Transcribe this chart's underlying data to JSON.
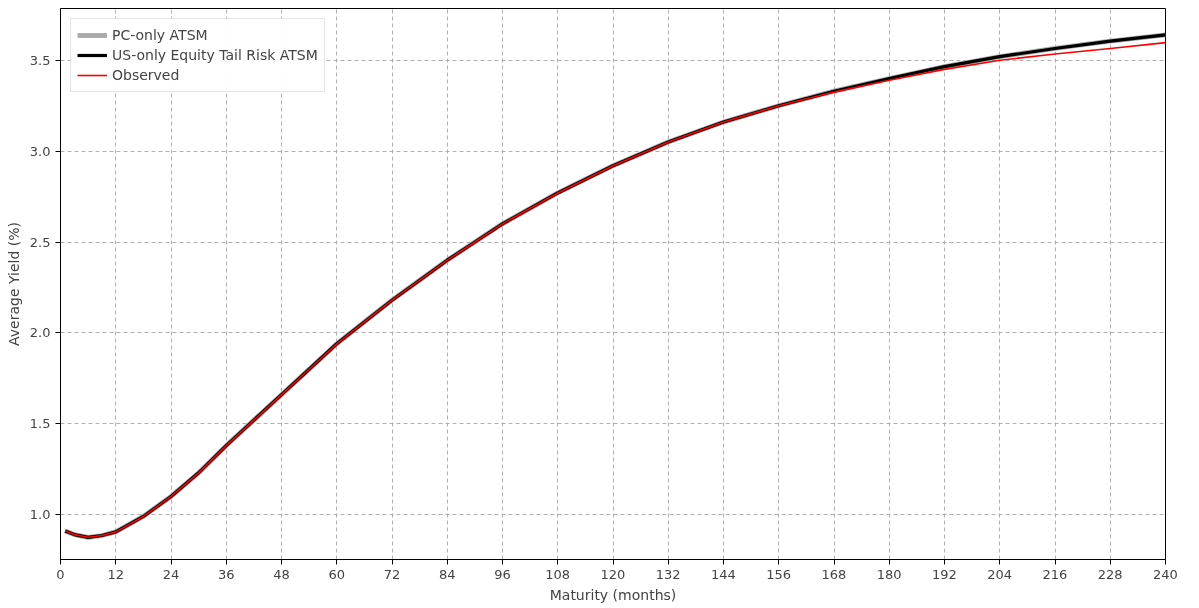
{
  "chart_data": {
    "type": "line",
    "xlabel": "Maturity (months)",
    "ylabel": "Average Yield (%)",
    "x": [
      1,
      3,
      6,
      9,
      12,
      18,
      24,
      30,
      36,
      42,
      48,
      54,
      60,
      66,
      72,
      78,
      84,
      90,
      96,
      108,
      120,
      132,
      144,
      156,
      168,
      180,
      192,
      204,
      216,
      228,
      240
    ],
    "series": [
      {
        "name": "PC-only ATSM",
        "color": "#aaaaaa",
        "values": [
          0.91,
          0.89,
          0.875,
          0.885,
          0.905,
          0.99,
          1.1,
          1.23,
          1.38,
          1.52,
          1.66,
          1.8,
          1.94,
          2.06,
          2.18,
          2.29,
          2.4,
          2.5,
          2.6,
          2.77,
          2.92,
          3.05,
          3.16,
          3.25,
          3.33,
          3.4,
          3.465,
          3.52,
          3.565,
          3.605,
          3.64
        ]
      },
      {
        "name": "US-only Equity Tail Risk ATSM",
        "color": "#000000",
        "values": [
          0.91,
          0.89,
          0.875,
          0.885,
          0.905,
          0.99,
          1.1,
          1.23,
          1.38,
          1.52,
          1.66,
          1.8,
          1.94,
          2.06,
          2.18,
          2.29,
          2.4,
          2.5,
          2.6,
          2.77,
          2.92,
          3.05,
          3.16,
          3.25,
          3.33,
          3.4,
          3.465,
          3.52,
          3.565,
          3.605,
          3.64
        ]
      },
      {
        "name": "Observed",
        "color": "#ff0000",
        "values": [
          0.91,
          0.89,
          0.875,
          0.885,
          0.905,
          0.99,
          1.1,
          1.23,
          1.38,
          1.52,
          1.66,
          1.8,
          1.94,
          2.06,
          2.18,
          2.29,
          2.4,
          2.5,
          2.6,
          2.77,
          2.92,
          3.05,
          3.16,
          3.25,
          3.325,
          3.39,
          3.45,
          3.5,
          3.535,
          3.565,
          3.597
        ]
      }
    ],
    "xlim": [
      0,
      240
    ],
    "xticks": [
      0,
      12,
      24,
      36,
      48,
      60,
      72,
      84,
      96,
      108,
      120,
      132,
      144,
      156,
      168,
      180,
      192,
      204,
      216,
      228,
      240
    ],
    "ylim": [
      0.753,
      3.785
    ],
    "yticks": [
      {
        "value": 1.0,
        "label": "1.0"
      },
      {
        "value": 1.5,
        "label": "1.5"
      },
      {
        "value": 2.0,
        "label": "2.0"
      },
      {
        "value": 2.5,
        "label": "2.5"
      },
      {
        "value": 3.0,
        "label": "3.0"
      },
      {
        "value": 3.5,
        "label": "3.5"
      }
    ],
    "grid": true,
    "legend": "top left",
    "line_style": "solid"
  }
}
